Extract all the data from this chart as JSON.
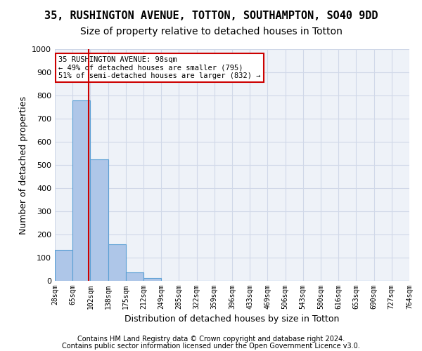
{
  "title1": "35, RUSHINGTON AVENUE, TOTTON, SOUTHAMPTON, SO40 9DD",
  "title2": "Size of property relative to detached houses in Totton",
  "xlabel": "Distribution of detached houses by size in Totton",
  "ylabel": "Number of detached properties",
  "footer1": "Contains HM Land Registry data © Crown copyright and database right 2024.",
  "footer2": "Contains public sector information licensed under the Open Government Licence v3.0.",
  "bin_labels": [
    "28sqm",
    "65sqm",
    "102sqm",
    "138sqm",
    "175sqm",
    "212sqm",
    "249sqm",
    "285sqm",
    "322sqm",
    "359sqm",
    "396sqm",
    "433sqm",
    "469sqm",
    "506sqm",
    "543sqm",
    "580sqm",
    "616sqm",
    "653sqm",
    "690sqm",
    "727sqm",
    "764sqm"
  ],
  "bar_values": [
    133,
    778,
    524,
    158,
    37,
    12,
    0,
    0,
    0,
    0,
    0,
    0,
    0,
    0,
    0,
    0,
    0,
    0,
    0,
    0
  ],
  "bar_color": "#aec6e8",
  "bar_edge_color": "#5a9fd4",
  "vline_x": 1.892,
  "annotation_text": "35 RUSHINGTON AVENUE: 98sqm\n← 49% of detached houses are smaller (795)\n51% of semi-detached houses are larger (832) →",
  "annotation_box_color": "#ffffff",
  "annotation_box_edge": "#cc0000",
  "vline_color": "#cc0000",
  "ylim": [
    0,
    1000
  ],
  "yticks": [
    0,
    100,
    200,
    300,
    400,
    500,
    600,
    700,
    800,
    900,
    1000
  ],
  "grid_color": "#d0d8e8",
  "bg_color": "#eef2f8",
  "title1_fontsize": 11,
  "title2_fontsize": 10,
  "xlabel_fontsize": 9,
  "ylabel_fontsize": 9
}
